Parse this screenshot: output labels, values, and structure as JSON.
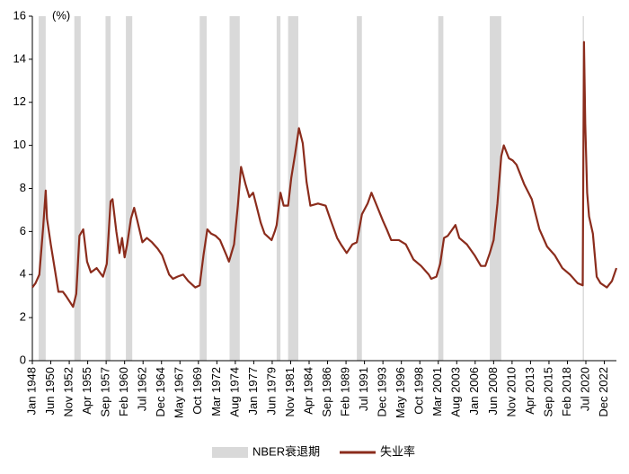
{
  "chart_data": {
    "type": "line",
    "unit_label": "(%)",
    "x": [
      "1948-01",
      "1948-06",
      "1948-12",
      "1949-06",
      "1949-10",
      "1949-12",
      "1950-06",
      "1950-12",
      "1951-06",
      "1952-01",
      "1952-06",
      "1953-05",
      "1953-10",
      "1954-03",
      "1954-09",
      "1955-03",
      "1955-09",
      "1956-06",
      "1957-04",
      "1957-10",
      "1958-04",
      "1958-07",
      "1959-01",
      "1959-06",
      "1959-10",
      "1960-02",
      "1960-06",
      "1960-12",
      "1961-05",
      "1961-10",
      "1962-06",
      "1963-01",
      "1963-09",
      "1964-06",
      "1965-01",
      "1965-12",
      "1966-06",
      "1967-01",
      "1967-10",
      "1968-06",
      "1969-05",
      "1969-12",
      "1970-06",
      "1970-12",
      "1971-06",
      "1972-01",
      "1972-08",
      "1973-06",
      "1973-10",
      "1974-06",
      "1974-12",
      "1975-05",
      "1975-12",
      "1976-06",
      "1976-12",
      "1977-06",
      "1977-12",
      "1978-06",
      "1979-05",
      "1979-10",
      "1980-01",
      "1980-07",
      "1980-12",
      "1981-07",
      "1981-12",
      "1982-06",
      "1982-12",
      "1983-06",
      "1983-12",
      "1984-06",
      "1985-06",
      "1986-06",
      "1987-01",
      "1987-12",
      "1988-06",
      "1989-03",
      "1989-12",
      "1990-07",
      "1991-03",
      "1991-12",
      "1992-06",
      "1993-01",
      "1993-12",
      "1994-06",
      "1995-01",
      "1996-01",
      "1996-12",
      "1997-12",
      "1998-12",
      "1999-12",
      "2000-04",
      "2000-12",
      "2001-06",
      "2001-12",
      "2002-06",
      "2003-06",
      "2003-12",
      "2004-12",
      "2005-12",
      "2006-10",
      "2007-05",
      "2007-12",
      "2008-06",
      "2008-12",
      "2009-06",
      "2009-10",
      "2010-06",
      "2010-12",
      "2011-06",
      "2012-06",
      "2013-06",
      "2014-06",
      "2015-06",
      "2016-06",
      "2017-06",
      "2018-06",
      "2019-06",
      "2020-02",
      "2020-04",
      "2020-06",
      "2020-09",
      "2020-12",
      "2021-06",
      "2021-12",
      "2022-06",
      "2023-04",
      "2023-12",
      "2024-07"
    ],
    "series": [
      {
        "name": "失业率",
        "color": "#8b2c1c",
        "values": [
          3.4,
          3.6,
          4.0,
          6.2,
          7.9,
          6.6,
          5.4,
          4.3,
          3.2,
          3.2,
          3.0,
          2.5,
          3.1,
          5.8,
          6.1,
          4.6,
          4.1,
          4.3,
          3.9,
          4.5,
          7.4,
          7.5,
          6.0,
          5.0,
          5.7,
          4.8,
          5.4,
          6.6,
          7.1,
          6.5,
          5.5,
          5.7,
          5.5,
          5.2,
          4.9,
          4.0,
          3.8,
          3.9,
          4.0,
          3.7,
          3.4,
          3.5,
          4.9,
          6.1,
          5.9,
          5.8,
          5.6,
          4.9,
          4.6,
          5.4,
          7.2,
          9.0,
          8.2,
          7.6,
          7.8,
          7.1,
          6.4,
          5.9,
          5.6,
          6.0,
          6.3,
          7.8,
          7.2,
          7.2,
          8.5,
          9.6,
          10.8,
          10.1,
          8.3,
          7.2,
          7.3,
          7.2,
          6.6,
          5.7,
          5.4,
          5.0,
          5.4,
          5.5,
          6.8,
          7.3,
          7.8,
          7.3,
          6.5,
          6.1,
          5.6,
          5.6,
          5.4,
          4.7,
          4.4,
          4.0,
          3.8,
          3.9,
          4.5,
          5.7,
          5.8,
          6.3,
          5.7,
          5.4,
          4.9,
          4.4,
          4.4,
          5.0,
          5.6,
          7.3,
          9.5,
          10.0,
          9.4,
          9.3,
          9.1,
          8.2,
          7.5,
          6.1,
          5.3,
          4.9,
          4.3,
          4.0,
          3.6,
          3.5,
          14.8,
          11.0,
          7.8,
          6.7,
          5.9,
          3.9,
          3.6,
          3.4,
          3.7,
          4.3
        ]
      }
    ],
    "recessions": {
      "name": "NBER衰退期",
      "color": "#d9d9d9",
      "periods": [
        [
          "1948-11",
          "1949-10"
        ],
        [
          "1953-07",
          "1954-05"
        ],
        [
          "1957-08",
          "1958-04"
        ],
        [
          "1960-04",
          "1961-02"
        ],
        [
          "1969-12",
          "1970-11"
        ],
        [
          "1973-11",
          "1975-03"
        ],
        [
          "1980-01",
          "1980-07"
        ],
        [
          "1981-07",
          "1982-11"
        ],
        [
          "1990-07",
          "1991-03"
        ],
        [
          "2001-03",
          "2001-11"
        ],
        [
          "2007-12",
          "2009-06"
        ],
        [
          "2020-02",
          "2020-04"
        ]
      ]
    },
    "xlim": [
      "1948-01",
      "2024-07"
    ],
    "xticks": [
      {
        "value": "1948-01",
        "label": "Jan 1948"
      },
      {
        "value": "1950-06",
        "label": "Jun 1950"
      },
      {
        "value": "1952-11",
        "label": "Nov 1952"
      },
      {
        "value": "1955-04",
        "label": "Apr 1955"
      },
      {
        "value": "1957-09",
        "label": "Sep 1957"
      },
      {
        "value": "1960-02",
        "label": "Feb 1960"
      },
      {
        "value": "1962-07",
        "label": "Jul 1962"
      },
      {
        "value": "1964-12",
        "label": "Dec 1964"
      },
      {
        "value": "1967-05",
        "label": "May 1967"
      },
      {
        "value": "1969-10",
        "label": "Oct 1969"
      },
      {
        "value": "1972-03",
        "label": "Mar 1972"
      },
      {
        "value": "1974-08",
        "label": "Aug 1974"
      },
      {
        "value": "1977-01",
        "label": "Jan 1977"
      },
      {
        "value": "1979-06",
        "label": "Jun 1979"
      },
      {
        "value": "1981-11",
        "label": "Nov 1981"
      },
      {
        "value": "1984-04",
        "label": "Apr 1984"
      },
      {
        "value": "1986-09",
        "label": "Sep 1986"
      },
      {
        "value": "1989-02",
        "label": "Feb 1989"
      },
      {
        "value": "1991-07",
        "label": "Jul 1991"
      },
      {
        "value": "1993-12",
        "label": "Dec 1993"
      },
      {
        "value": "1996-05",
        "label": "May 1996"
      },
      {
        "value": "1998-10",
        "label": "Oct 1998"
      },
      {
        "value": "2001-03",
        "label": "Mar 2001"
      },
      {
        "value": "2003-08",
        "label": "Aug 2003"
      },
      {
        "value": "2006-01",
        "label": "Jan 2006"
      },
      {
        "value": "2008-06",
        "label": "Jun 2008"
      },
      {
        "value": "2010-11",
        "label": "Nov 2010"
      },
      {
        "value": "2013-04",
        "label": "Apr 2013"
      },
      {
        "value": "2015-09",
        "label": "Sep 2015"
      },
      {
        "value": "2018-02",
        "label": "Feb 2018"
      },
      {
        "value": "2020-07",
        "label": "Jul 2020"
      },
      {
        "value": "2022-12",
        "label": "Dec 2022"
      }
    ],
    "ylim": [
      0,
      16
    ],
    "yticks": [
      0,
      2,
      4,
      6,
      8,
      10,
      12,
      14,
      16
    ],
    "grid": false
  }
}
